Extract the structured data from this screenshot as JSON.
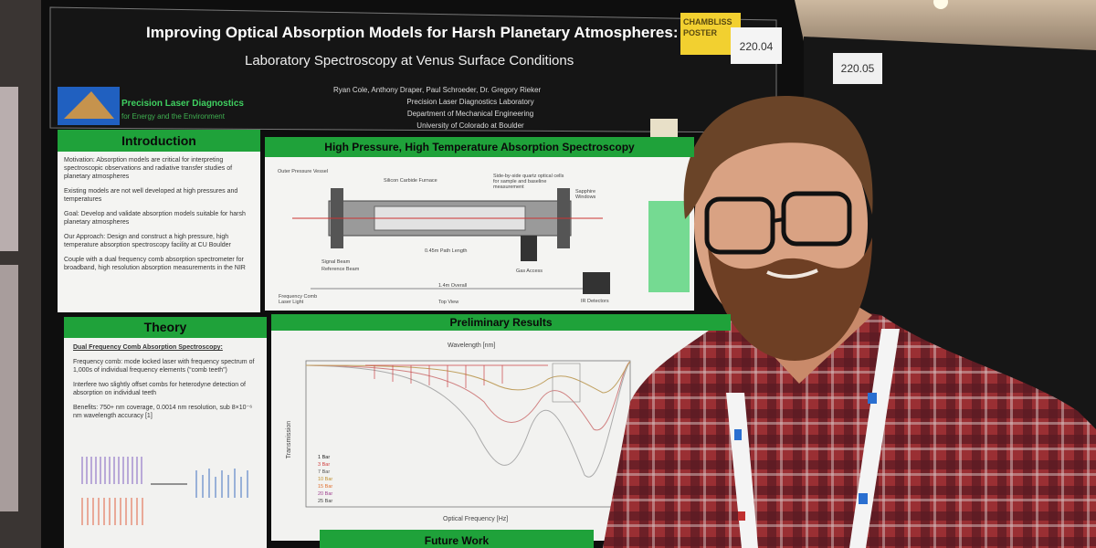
{
  "signs": [
    "CHAMBLISS POSTER",
    "220.04",
    "220.05"
  ],
  "poster": {
    "title": "Improving Optical Absorption Models for Harsh Planetary Atmospheres:",
    "subtitle": "Laboratory Spectroscopy at Venus Surface Conditions",
    "authors": "Ryan Cole, Anthony Draper, Paul Schroeder, Dr. Gregory Rieker",
    "affiliations": [
      "Precision Laser Diagnostics Laboratory",
      "Department of Mechanical Engineering",
      "University of Colorado at Boulder"
    ],
    "lab_logo": {
      "name": "Precision Laser Diagnostics",
      "tagline": "for Energy and the Environment"
    },
    "introduction": {
      "heading": "Introduction",
      "paragraphs": [
        "Motivation: Absorption models are critical for interpreting spectroscopic observations and radiative transfer studies of planetary atmospheres",
        "Existing models are not well developed at high pressures and temperatures",
        "Goal: Develop and validate absorption models suitable for harsh planetary atmospheres",
        "Our Approach: Design and construct a high pressure, high temperature absorption spectroscopy facility at CU Boulder",
        "Couple with a dual frequency comb absorption spectrometer for broadband, high resolution absorption measurements in the NIR"
      ]
    },
    "apparatus": {
      "heading": "High Pressure, High Temperature Absorption Spectroscopy",
      "labels": [
        "Outer Pressure Vessel",
        "Silicon Carbide Furnace",
        "Side-by-side quartz optical cells for sample and baseline measurement",
        "Sapphire Windows",
        "Signal Beam",
        "Reference Beam",
        "0.45m Path Length",
        "Gas Access",
        "1.4m Overall",
        "Top View",
        "Frequency Comb Laser Light",
        "IR Detectors"
      ]
    },
    "theory": {
      "heading": "Theory",
      "paragraphs": [
        "Dual Frequency Comb Absorption Spectroscopy:",
        "Frequency comb: mode locked laser with frequency spectrum of 1,000s of individual frequency elements (“comb teeth”)",
        "Interfere two slightly offset combs for heterodyne detection of absorption on individual teeth",
        "Benefits: 750+ nm coverage, 0.0014 nm resolution, sub 8×10⁻⁶ nm wavelength accuracy [1]"
      ]
    },
    "results": {
      "heading": "Preliminary Results",
      "x_label": "Optical Frequency [Hz]",
      "top_label": "Wavelength [nm]",
      "y_label": "Transmission",
      "legend": [
        {
          "name": "1 Bar",
          "color": "#222222"
        },
        {
          "name": "3 Bar",
          "color": "#d04040"
        },
        {
          "name": "7 Bar",
          "color": "#555555"
        },
        {
          "name": "10 Bar",
          "color": "#c09030"
        },
        {
          "name": "15 Bar",
          "color": "#e07030"
        },
        {
          "name": "20 Bar",
          "color": "#a04090"
        },
        {
          "name": "25 Bar",
          "color": "#444444"
        }
      ]
    },
    "future_work": {
      "heading": "Future Work"
    }
  }
}
